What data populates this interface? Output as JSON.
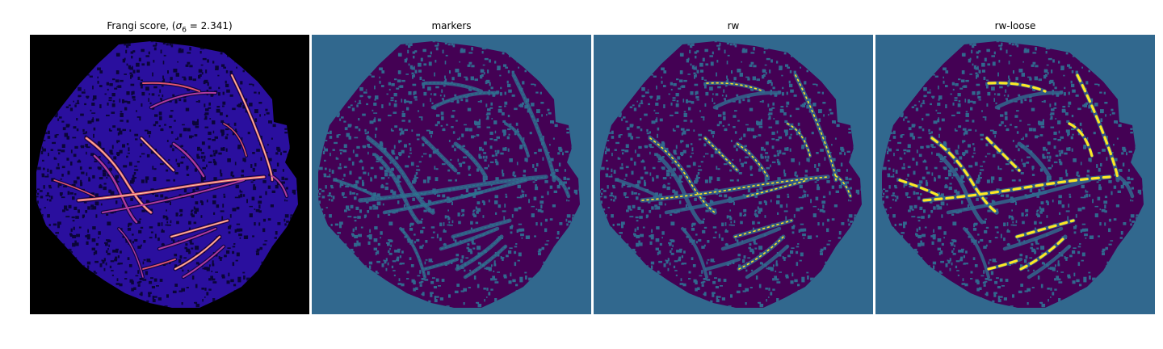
{
  "figure": {
    "panels": [
      {
        "id": "frangi",
        "title_prefix": "Frangi score, (",
        "title_sigma": "σ",
        "title_sub": "6",
        "title_suffix": " = 2.341)",
        "background": "#000000",
        "leaf_fill": "#2a0f9e",
        "texture": "#0b0538",
        "vessel_colors": [
          "#b03a9c",
          "#e3566e",
          "#fca56a",
          "#fde6a8"
        ]
      },
      {
        "id": "markers",
        "title": "markers",
        "background": "#31688e",
        "leaf_fill": "#440154",
        "texture": "#31688e",
        "vessel_colors": [
          "#2a7f8e",
          "#35b779"
        ]
      },
      {
        "id": "rw",
        "title": "rw",
        "background": "#31688e",
        "leaf_fill": "#440154",
        "texture": "#31688e",
        "vessel_colors": [
          "#35b779",
          "#fde725"
        ]
      },
      {
        "id": "rw-loose",
        "title": "rw-loose",
        "background": "#31688e",
        "leaf_fill": "#440154",
        "texture": "#31688e",
        "vessel_colors": [
          "#fde725",
          "#b5de2b"
        ]
      }
    ]
  }
}
